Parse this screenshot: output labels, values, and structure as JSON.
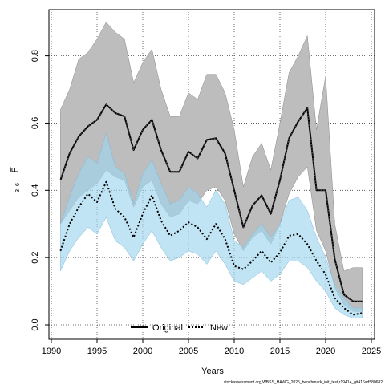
{
  "chart_data": {
    "type": "line",
    "xlabel": "Years",
    "ylabel": "F̅",
    "ylabel_subscript": "3–6",
    "xlim": [
      1990,
      2025
    ],
    "ylim": [
      0,
      0.9
    ],
    "xticks": [
      1990,
      1995,
      2000,
      2005,
      2010,
      2015,
      2020,
      2025
    ],
    "yticks": [
      0.0,
      0.2,
      0.4,
      0.6,
      0.8
    ],
    "grid": true,
    "legend_position": "bottom-center",
    "colors": {
      "original_line": "#000000",
      "original_band": "#bdbdbd",
      "new_line": "#000000",
      "new_band": "#9fd5f0"
    },
    "series": [
      {
        "name": "Original",
        "style": "solid",
        "x": [
          1991,
          1992,
          1993,
          1994,
          1995,
          1996,
          1997,
          1998,
          1999,
          2000,
          2001,
          2002,
          2003,
          2004,
          2005,
          2006,
          2007,
          2008,
          2009,
          2010,
          2011,
          2012,
          2013,
          2014,
          2015,
          2016,
          2017,
          2018,
          2019,
          2020,
          2021,
          2022,
          2023,
          2024
        ],
        "values": [
          0.43,
          0.51,
          0.56,
          0.59,
          0.61,
          0.655,
          0.63,
          0.62,
          0.52,
          0.58,
          0.61,
          0.52,
          0.455,
          0.455,
          0.515,
          0.495,
          0.55,
          0.555,
          0.51,
          0.4,
          0.29,
          0.355,
          0.385,
          0.33,
          0.43,
          0.555,
          0.605,
          0.645,
          0.4,
          0.4,
          0.195,
          0.09,
          0.07,
          0.07
        ],
        "lower": [
          0.3,
          0.34,
          0.38,
          0.4,
          0.42,
          0.46,
          0.44,
          0.43,
          0.35,
          0.41,
          0.43,
          0.36,
          0.32,
          0.33,
          0.37,
          0.36,
          0.4,
          0.41,
          0.37,
          0.27,
          0.22,
          0.26,
          0.28,
          0.24,
          0.3,
          0.39,
          0.44,
          0.47,
          0.28,
          0.22,
          0.11,
          0.06,
          0.04,
          0.04
        ],
        "upper": [
          0.64,
          0.7,
          0.79,
          0.81,
          0.85,
          0.9,
          0.87,
          0.85,
          0.72,
          0.78,
          0.82,
          0.7,
          0.62,
          0.62,
          0.69,
          0.67,
          0.745,
          0.745,
          0.69,
          0.58,
          0.41,
          0.5,
          0.54,
          0.46,
          0.6,
          0.75,
          0.8,
          0.86,
          0.58,
          0.74,
          0.3,
          0.16,
          0.17,
          0.17
        ]
      },
      {
        "name": "New",
        "style": "dotted",
        "x": [
          1991,
          1992,
          1993,
          1994,
          1995,
          1996,
          1997,
          1998,
          1999,
          2000,
          2001,
          2002,
          2003,
          2004,
          2005,
          2006,
          2007,
          2008,
          2009,
          2010,
          2011,
          2012,
          2013,
          2014,
          2015,
          2016,
          2017,
          2018,
          2019,
          2020,
          2021,
          2022,
          2023,
          2024
        ],
        "values": [
          0.22,
          0.3,
          0.35,
          0.39,
          0.365,
          0.425,
          0.345,
          0.32,
          0.26,
          0.33,
          0.385,
          0.31,
          0.265,
          0.28,
          0.305,
          0.29,
          0.255,
          0.3,
          0.255,
          0.175,
          0.165,
          0.19,
          0.22,
          0.185,
          0.215,
          0.265,
          0.27,
          0.24,
          0.19,
          0.15,
          0.08,
          0.05,
          0.03,
          0.035
        ],
        "lower": [
          0.16,
          0.22,
          0.26,
          0.29,
          0.27,
          0.32,
          0.25,
          0.23,
          0.19,
          0.24,
          0.28,
          0.23,
          0.19,
          0.2,
          0.22,
          0.21,
          0.18,
          0.22,
          0.18,
          0.13,
          0.12,
          0.14,
          0.16,
          0.13,
          0.15,
          0.19,
          0.19,
          0.17,
          0.13,
          0.1,
          0.05,
          0.03,
          0.02,
          0.02
        ],
        "upper": [
          0.3,
          0.38,
          0.45,
          0.5,
          0.48,
          0.57,
          0.47,
          0.45,
          0.36,
          0.45,
          0.49,
          0.42,
          0.36,
          0.37,
          0.41,
          0.39,
          0.35,
          0.4,
          0.36,
          0.25,
          0.23,
          0.27,
          0.3,
          0.26,
          0.3,
          0.37,
          0.38,
          0.34,
          0.26,
          0.2,
          0.12,
          0.08,
          0.05,
          0.05
        ]
      }
    ]
  },
  "footer_text": "stockassessment.org,WBSS_HAWG_2025_benchmark_init_test,r19414_git416ad580682"
}
